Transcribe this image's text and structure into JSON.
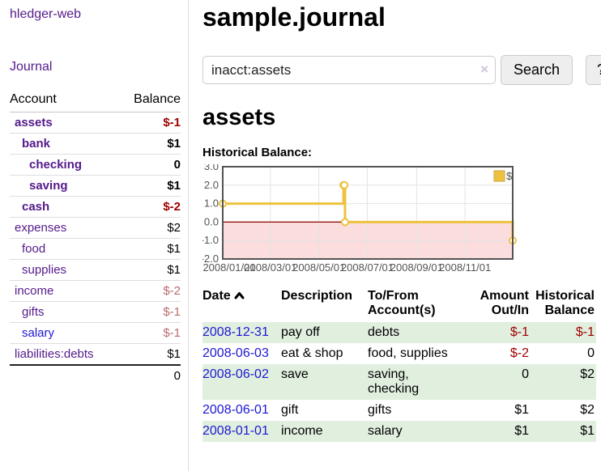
{
  "app": {
    "brand": "hledger-web"
  },
  "sidebar": {
    "nav_journal": "Journal",
    "accounts": {
      "header_account": "Account",
      "header_balance": "Balance",
      "rows": [
        {
          "name": "assets",
          "indent": 1,
          "balance": "$-1",
          "bold": true,
          "neg": "strong",
          "link": "purple"
        },
        {
          "name": "bank",
          "indent": 2,
          "balance": "$1",
          "bold": true,
          "neg": "none",
          "link": "purple"
        },
        {
          "name": "checking",
          "indent": 3,
          "balance": "0",
          "bold": true,
          "neg": "none",
          "link": "purple"
        },
        {
          "name": "saving",
          "indent": 3,
          "balance": "$1",
          "bold": true,
          "neg": "none",
          "link": "purple"
        },
        {
          "name": "cash",
          "indent": 2,
          "balance": "$-2",
          "bold": true,
          "neg": "strong",
          "link": "purple"
        },
        {
          "name": "expenses",
          "indent": 1,
          "balance": "$2",
          "bold": false,
          "neg": "none",
          "link": "purple"
        },
        {
          "name": "food",
          "indent": 2,
          "balance": "$1",
          "bold": false,
          "neg": "none",
          "link": "purple"
        },
        {
          "name": "supplies",
          "indent": 2,
          "balance": "$1",
          "bold": false,
          "neg": "none",
          "link": "purple"
        },
        {
          "name": "income",
          "indent": 1,
          "balance": "$-2",
          "bold": false,
          "neg": "muted",
          "link": "purple"
        },
        {
          "name": "gifts",
          "indent": 2,
          "balance": "$-1",
          "bold": false,
          "neg": "muted",
          "link": "purple"
        },
        {
          "name": "salary",
          "indent": 2,
          "balance": "$-1",
          "bold": false,
          "neg": "muted",
          "link": "blue"
        },
        {
          "name": "liabilities:debts",
          "indent": 1,
          "balance": "$1",
          "bold": false,
          "neg": "none",
          "link": "purple"
        }
      ],
      "total": "0"
    }
  },
  "main": {
    "title": "sample.journal",
    "search": {
      "value": "inacct:assets",
      "clear_glyph": "×",
      "button_label": "Search",
      "help_label": "?"
    },
    "account_heading": "assets",
    "chart_label": "Historical Balance:"
  },
  "chart_data": {
    "type": "line",
    "style": "step",
    "title": "Historical Balance:",
    "series": [
      {
        "name": "$",
        "color": "#edc240",
        "points": [
          [
            "2008-01-01",
            1
          ],
          [
            "2008-06-01",
            2
          ],
          [
            "2008-06-02",
            2
          ],
          [
            "2008-06-03",
            0
          ],
          [
            "2008-12-31",
            -1
          ]
        ]
      }
    ],
    "xlim": [
      "2008-01-01",
      "2008-12-31"
    ],
    "ylim": [
      -2,
      3
    ],
    "y_ticks": [
      3.0,
      2.0,
      1.0,
      0.0,
      -1.0,
      -2.0
    ],
    "x_ticks": [
      "2008/01/01",
      "2008/03/01",
      "2008/05/01",
      "2008/07/01",
      "2008/09/01",
      "2008/11/01"
    ],
    "legend_position": "top-right",
    "grid": true,
    "negative_fill": "#fbdddd",
    "zero_line_color": "#8b0000",
    "border_color": "#545454",
    "gridline_color": "#e3e3e3",
    "tick_label_color": "#545454"
  },
  "register": {
    "headers": {
      "date": "Date",
      "description": "Description",
      "accounts": "To/From Account(s)",
      "amount": "Amount Out/In",
      "balance": "Historical Balance"
    },
    "rows": [
      {
        "date": "2008-12-31",
        "description": "pay off",
        "accounts": "debts",
        "amount": "$-1",
        "balance": "$-1",
        "amount_neg": true,
        "balance_neg": true
      },
      {
        "date": "2008-06-03",
        "description": "eat & shop",
        "accounts": "food, supplies",
        "amount": "$-2",
        "balance": "0",
        "amount_neg": true,
        "balance_neg": false
      },
      {
        "date": "2008-06-02",
        "description": "save",
        "accounts": "saving, checking",
        "amount": "0",
        "balance": "$2",
        "amount_neg": false,
        "balance_neg": false
      },
      {
        "date": "2008-06-01",
        "description": "gift",
        "accounts": "gifts",
        "amount": "$1",
        "balance": "$2",
        "amount_neg": false,
        "balance_neg": false
      },
      {
        "date": "2008-01-01",
        "description": "income",
        "accounts": "salary",
        "amount": "$1",
        "balance": "$1",
        "amount_neg": false,
        "balance_neg": false
      }
    ]
  },
  "colors": {
    "link_purple": "#551a8b",
    "link_blue": "#1d18d2",
    "negative_strong": "#a00000",
    "negative_muted": "#bb6a6a",
    "row_stripe_green": "#e1efdf",
    "series_gold": "#edc240"
  }
}
